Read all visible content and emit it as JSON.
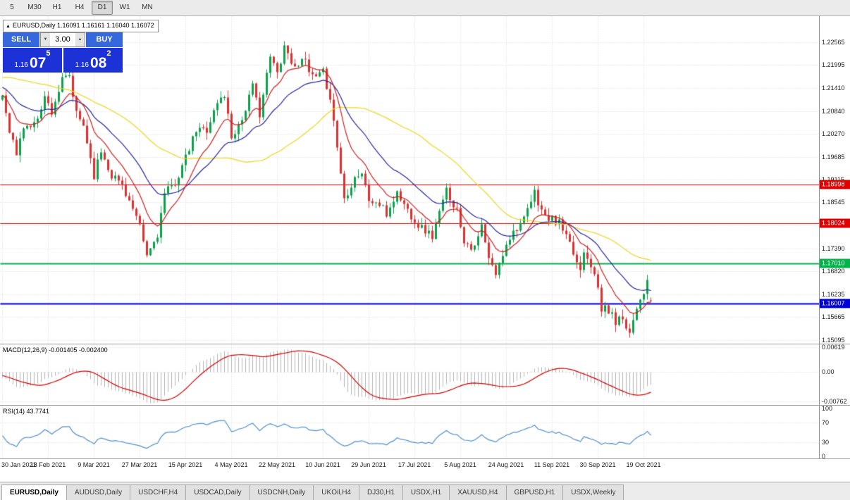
{
  "toolbar": {
    "timeframes": [
      "5",
      "M30",
      "H1",
      "H4",
      "D1",
      "W1",
      "MN"
    ],
    "active_timeframe": "D1"
  },
  "chart_header": {
    "collapse_icon": "▲",
    "symbol_line": "EURUSD,Daily 1.16091 1.16161 1.16040 1.16072"
  },
  "trade_widget": {
    "sell_label": "SELL",
    "buy_label": "BUY",
    "volume": "3.00",
    "spin_up": "▲",
    "spin_down": "▼",
    "sell_price": {
      "base": "1.16",
      "big": "07",
      "sup": "5"
    },
    "buy_price": {
      "base": "1.16",
      "big": "08",
      "sup": "2"
    }
  },
  "price_axis_labels": [
    "1.22565",
    "1.21995",
    "1.21410",
    "1.20840",
    "1.20270",
    "1.19685",
    "1.19115",
    "1.18545",
    "1.17960",
    "1.17390",
    "1.16820",
    "1.16235",
    "1.15665",
    "1.15095"
  ],
  "price_tags": [
    {
      "label": "1.18998",
      "price": 1.18998,
      "color": "#e00000"
    },
    {
      "label": "1.18024",
      "price": 1.18024,
      "color": "#e00000"
    },
    {
      "label": "1.17010",
      "price": 1.1701,
      "color": "#00b44a"
    },
    {
      "label": "1.16007",
      "price": 1.16007,
      "color": "#0000d8"
    }
  ],
  "indicators": {
    "macd": {
      "label": "MACD(12,26,9) -0.001405 -0.002400",
      "axis_labels": [
        "0.00619",
        "0.00",
        "-0.00762"
      ]
    },
    "rsi": {
      "label": "RSI(14) 43.7741",
      "axis_labels": [
        "100",
        "70",
        "30",
        "0"
      ]
    }
  },
  "date_axis_labels": [
    "30 Jan 2021",
    "18 Feb 2021",
    "9 Mar 2021",
    "27 Mar 2021",
    "15 Apr 2021",
    "4 May 2021",
    "22 May 2021",
    "10 Jun 2021",
    "29 Jun 2021",
    "17 Jul 2021",
    "5 Aug 2021",
    "24 Aug 2021",
    "11 Sep 2021",
    "30 Sep 2021",
    "19 Oct 2021"
  ],
  "tabs": [
    "EURUSD,Daily",
    "AUDUSD,Daily",
    "USDCHF,H4",
    "USDCAD,Daily",
    "USDCNH,Daily",
    "UKOil,H4",
    "DJ30,H1",
    "USDX,H1",
    "XAUUSD,H4",
    "GBPUSD,H1",
    "USDX,Weekly"
  ],
  "active_tab": "EURUSD,Daily",
  "chart_data": {
    "type": "candlestick",
    "symbol": "EURUSD",
    "timeframe": "Daily",
    "current_bar": {
      "open": 1.16091,
      "high": 1.16161,
      "low": 1.1604,
      "close": 1.16072
    },
    "price_range": {
      "top": 1.22565,
      "bottom": 1.15095
    },
    "bars_count": 185,
    "noise": 0.0022,
    "wick": 0.0018,
    "candle_colors": {
      "up": "#0ba14c",
      "down": "#dd3030"
    },
    "horizontal_lines": [
      {
        "price": 1.18998,
        "color": "#e00000",
        "width": 1
      },
      {
        "price": 1.18024,
        "color": "#e00000",
        "width": 1
      },
      {
        "price": 1.1701,
        "color": "#00b44a",
        "width": 2
      },
      {
        "price": 1.16007,
        "color": "#0000d8",
        "width": 2
      }
    ],
    "moving_averages": [
      {
        "period": 50,
        "method": "sma",
        "color": "#eed51f"
      },
      {
        "period": 24,
        "method": "ema",
        "color": "#26269c"
      },
      {
        "period": 10,
        "method": "ema",
        "color": "#cc1f1f"
      }
    ],
    "macd_params": {
      "fast": 12,
      "slow": 26,
      "signal": 9,
      "current": [
        -0.001405,
        -0.0024
      ],
      "range": {
        "top": 0.007,
        "bottom": -0.0085
      },
      "histogram_color": "#b3b3b3",
      "signal_color": "#cc0000"
    },
    "rsi_params": {
      "period": 14,
      "current": 43.7741,
      "levels": [
        70,
        30
      ],
      "color": "#4f8fce"
    },
    "close_waypoints": [
      [
        0,
        1.2125
      ],
      [
        2,
        1.204
      ],
      [
        4,
        1.1975
      ],
      [
        6,
        1.2045
      ],
      [
        9,
        1.205
      ],
      [
        12,
        1.212
      ],
      [
        14,
        1.2085
      ],
      [
        17,
        1.216
      ],
      [
        19,
        1.217
      ],
      [
        21,
        1.2075
      ],
      [
        23,
        1.205
      ],
      [
        26,
        1.1925
      ],
      [
        28,
        1.1985
      ],
      [
        31,
        1.1925
      ],
      [
        34,
        1.19
      ],
      [
        36,
        1.186
      ],
      [
        39,
        1.179
      ],
      [
        41,
        1.172
      ],
      [
        44,
        1.1775
      ],
      [
        46,
        1.1875
      ],
      [
        49,
        1.1905
      ],
      [
        52,
        1.1965
      ],
      [
        55,
        1.2035
      ],
      [
        58,
        1.204
      ],
      [
        61,
        1.2105
      ],
      [
        63,
        1.2125
      ],
      [
        65,
        1.202
      ],
      [
        68,
        1.2065
      ],
      [
        71,
        1.2145
      ],
      [
        73,
        1.208
      ],
      [
        76,
        1.222
      ],
      [
        78,
        1.218
      ],
      [
        80,
        1.225
      ],
      [
        83,
        1.219
      ],
      [
        85,
        1.2225
      ],
      [
        87,
        1.218
      ],
      [
        89,
        1.2165
      ],
      [
        91,
        1.218
      ],
      [
        93,
        1.212
      ],
      [
        95,
        1.1995
      ],
      [
        97,
        1.1865
      ],
      [
        100,
        1.192
      ],
      [
        102,
        1.193
      ],
      [
        104,
        1.186
      ],
      [
        107,
        1.185
      ],
      [
        109,
        1.1825
      ],
      [
        112,
        1.188
      ],
      [
        115,
        1.1836
      ],
      [
        118,
        1.1799
      ],
      [
        122,
        1.177
      ],
      [
        126,
        1.1885
      ],
      [
        129,
        1.1836
      ],
      [
        131,
        1.1762
      ],
      [
        134,
        1.1738
      ],
      [
        136,
        1.1795
      ],
      [
        138,
        1.171
      ],
      [
        140,
        1.1675
      ],
      [
        141,
        1.1697
      ],
      [
        143,
        1.1756
      ],
      [
        146,
        1.1795
      ],
      [
        148,
        1.181
      ],
      [
        151,
        1.1879
      ],
      [
        154,
        1.1817
      ],
      [
        158,
        1.1805
      ],
      [
        160,
        1.1766
      ],
      [
        164,
        1.1686
      ],
      [
        165,
        1.1739
      ],
      [
        168,
        1.1683
      ],
      [
        170,
        1.158
      ],
      [
        171,
        1.1595
      ],
      [
        174,
        1.1556
      ],
      [
        176,
        1.1567
      ],
      [
        178,
        1.153
      ],
      [
        180,
        1.1596
      ],
      [
        182,
        1.1633
      ],
      [
        183,
        1.1652
      ],
      [
        184,
        1.16072
      ]
    ],
    "warmup_waypoints": [
      [
        -60,
        1.187
      ],
      [
        -52,
        1.196
      ],
      [
        -45,
        1.212
      ],
      [
        -38,
        1.2185
      ],
      [
        -32,
        1.2255
      ],
      [
        -28,
        1.2285
      ],
      [
        -24,
        1.2175
      ],
      [
        -18,
        1.216
      ],
      [
        -12,
        1.219
      ],
      [
        -8,
        1.2165
      ],
      [
        -4,
        1.2085
      ],
      [
        -1,
        1.2115
      ]
    ]
  }
}
